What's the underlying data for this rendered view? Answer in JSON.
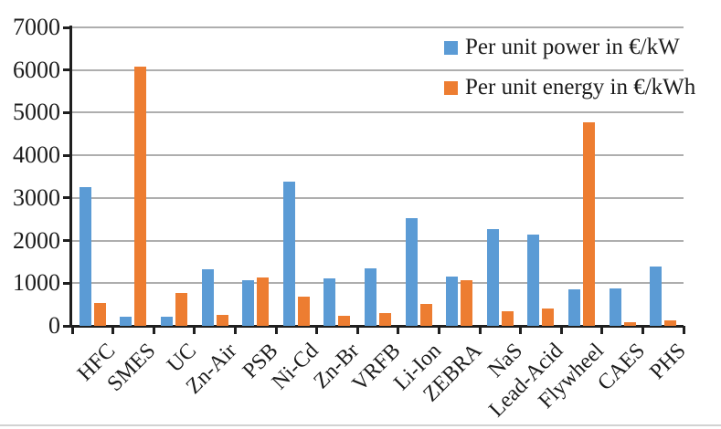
{
  "legend": {
    "power_label": "Per unit power in €/kW",
    "energy_label": "Per unit energy in €/kWh"
  },
  "colors": {
    "power": "#5B9BD5",
    "energy": "#ED7D31",
    "gridline": "#aeaeae",
    "axis": "#1f1f1f",
    "text": "#1c1c1c"
  },
  "y_axis": {
    "tick_labels": [
      "0",
      "1000",
      "2000",
      "3000",
      "4000",
      "5000",
      "6000",
      "7000"
    ]
  },
  "chart_data": {
    "type": "bar",
    "categories": [
      "HFC",
      "SMES",
      "UC",
      "Zn-Air",
      "PSB",
      "Ni-Cd",
      "Zn-Br",
      "VRFB",
      "Li-Ion",
      "ZEBRA",
      "NaS",
      "Lead-Acid",
      "Flywheel",
      "CAES",
      "PHS"
    ],
    "series": [
      {
        "name": "Per unit power in €/kW",
        "color": "#5B9BD5",
        "values": [
          3250,
          220,
          220,
          1330,
          1080,
          3380,
          1120,
          1350,
          2520,
          1150,
          2260,
          2150,
          850,
          880,
          1390
        ]
      },
      {
        "name": "Per unit energy in €/kWh",
        "color": "#ED7D31",
        "values": [
          540,
          6080,
          760,
          250,
          1130,
          690,
          230,
          300,
          510,
          1080,
          350,
          400,
          4780,
          80,
          120
        ]
      }
    ],
    "title": "",
    "xlabel": "",
    "ylabel": "",
    "ylim": [
      0,
      7000
    ],
    "ytick_interval": 1000,
    "grid": true,
    "legend_position": "top-right",
    "x_labels_rotation_deg": 45
  }
}
